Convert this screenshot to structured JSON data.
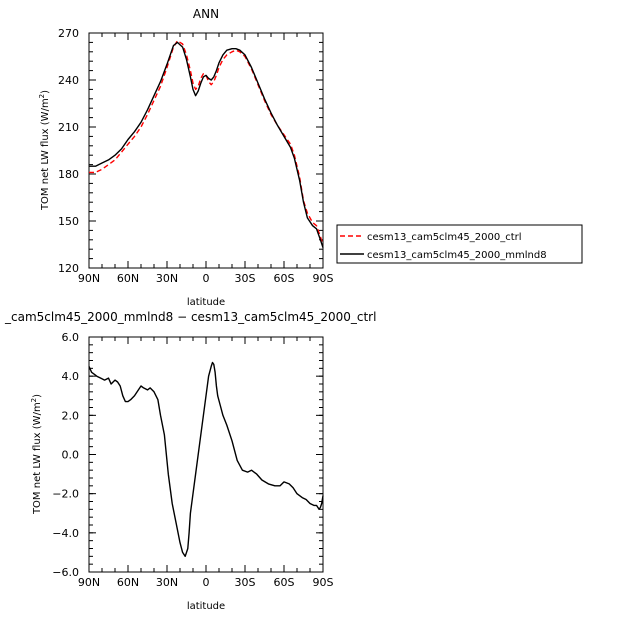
{
  "chart_data": [
    {
      "type": "line",
      "title": "ANN",
      "xlabel": "latitude",
      "ylabel_main": "TOM net LW flux (W/m",
      "ylabel_sup": "2",
      "ylabel_close": ")",
      "xlim": [
        90,
        -90
      ],
      "ylim": [
        120,
        270
      ],
      "xticks": [
        90,
        60,
        30,
        0,
        -30,
        -60,
        -90
      ],
      "xtick_labels": [
        "90N",
        "60N",
        "30N",
        "0",
        "30S",
        "60S",
        "90S"
      ],
      "yticks": [
        120,
        150,
        180,
        210,
        240,
        270
      ],
      "ytick_labels": [
        "120",
        "150",
        "180",
        "210",
        "240",
        "270"
      ],
      "grid": false,
      "legend_position": "right",
      "x": [
        90,
        85,
        80,
        75,
        70,
        65,
        60,
        55,
        50,
        45,
        40,
        35,
        30,
        25,
        22,
        18,
        15,
        12,
        10,
        8,
        6,
        4,
        2,
        0,
        -2,
        -4,
        -6,
        -8,
        -10,
        -13,
        -16,
        -20,
        -23,
        -26,
        -30,
        -35,
        -40,
        -45,
        -50,
        -55,
        -60,
        -65,
        -68,
        -72,
        -75,
        -78,
        -82,
        -85,
        -88,
        -90
      ],
      "series": [
        {
          "name": "cesm13_cam5clm45_2000_ctrl",
          "color": "#ff0000",
          "dash": "dashed",
          "values": [
            181,
            181,
            183,
            186,
            189,
            194,
            199,
            204,
            210,
            218,
            227,
            236,
            248,
            261,
            265,
            263,
            256,
            246,
            238,
            234,
            236,
            241,
            244,
            243,
            239,
            237,
            239,
            243,
            248,
            253,
            256,
            258,
            259,
            258,
            255,
            247,
            237,
            227,
            218,
            211,
            205,
            199,
            192,
            178,
            163,
            155,
            149,
            147,
            140,
            135
          ]
        },
        {
          "name": "cesm13_cam5clm45_2000_mmlnd8",
          "color": "#000000",
          "dash": "solid",
          "values": [
            185,
            185,
            187,
            189,
            192,
            196,
            202,
            207,
            213,
            221,
            230,
            239,
            250,
            262,
            264,
            261,
            253,
            242,
            234,
            230,
            233,
            238,
            242,
            243,
            241,
            240,
            242,
            246,
            251,
            256,
            259,
            260,
            260,
            259,
            256,
            248,
            238,
            228,
            219,
            211,
            204,
            197,
            190,
            176,
            162,
            152,
            147,
            145,
            138,
            133
          ]
        }
      ]
    },
    {
      "type": "line",
      "title": "_cam5clm45_2000_mmlnd8 − cesm13_cam5clm45_2000_ctrl",
      "xlabel": "latitude",
      "ylabel_main": "TOM net LW flux (W/m",
      "ylabel_sup": "2",
      "ylabel_close": ")",
      "xlim": [
        90,
        -90
      ],
      "ylim": [
        -6,
        6
      ],
      "xticks": [
        90,
        60,
        30,
        0,
        -30,
        -60,
        -90
      ],
      "xtick_labels": [
        "90N",
        "60N",
        "30N",
        "0",
        "30S",
        "60S",
        "90S"
      ],
      "yticks": [
        -6,
        -4,
        -2,
        0,
        2,
        4,
        6
      ],
      "ytick_labels": [
        "−6.0",
        "−4.0",
        "−2.0",
        "0.0",
        "2.0",
        "4.0",
        "6.0"
      ],
      "grid": false,
      "x": [
        90,
        88,
        86,
        84,
        81,
        78,
        75,
        73,
        70,
        68,
        66,
        64,
        62,
        60,
        58,
        55,
        52,
        50,
        48,
        45,
        43,
        40,
        37,
        35,
        32,
        29,
        26,
        23,
        20,
        18,
        16,
        14,
        13,
        12,
        10,
        8,
        5,
        2,
        0,
        -2,
        -4,
        -5,
        -6,
        -7,
        -8,
        -9,
        -11,
        -13,
        -16,
        -20,
        -24,
        -28,
        -32,
        -35,
        -39,
        -43,
        -48,
        -53,
        -57,
        -60,
        -64,
        -67,
        -70,
        -74,
        -77,
        -80,
        -83,
        -85,
        -87,
        -88,
        -89,
        -90
      ],
      "values": [
        4.5,
        4.2,
        4.1,
        4.0,
        3.9,
        3.8,
        3.9,
        3.6,
        3.8,
        3.7,
        3.5,
        3.0,
        2.7,
        2.7,
        2.8,
        3.0,
        3.3,
        3.5,
        3.4,
        3.3,
        3.4,
        3.2,
        2.8,
        2.0,
        1.0,
        -1.0,
        -2.5,
        -3.5,
        -4.5,
        -5.0,
        -5.2,
        -4.8,
        -4.0,
        -3.0,
        -2.0,
        -1.0,
        0.5,
        2.0,
        3.0,
        4.0,
        4.5,
        4.7,
        4.6,
        4.2,
        3.5,
        3.0,
        2.5,
        2.0,
        1.5,
        0.7,
        -0.3,
        -0.8,
        -0.9,
        -0.8,
        -1.0,
        -1.3,
        -1.5,
        -1.6,
        -1.6,
        -1.4,
        -1.5,
        -1.7,
        -2.0,
        -2.2,
        -2.3,
        -2.5,
        -2.6,
        -2.6,
        -2.8,
        -2.7,
        -2.5,
        -2.1
      ]
    }
  ]
}
